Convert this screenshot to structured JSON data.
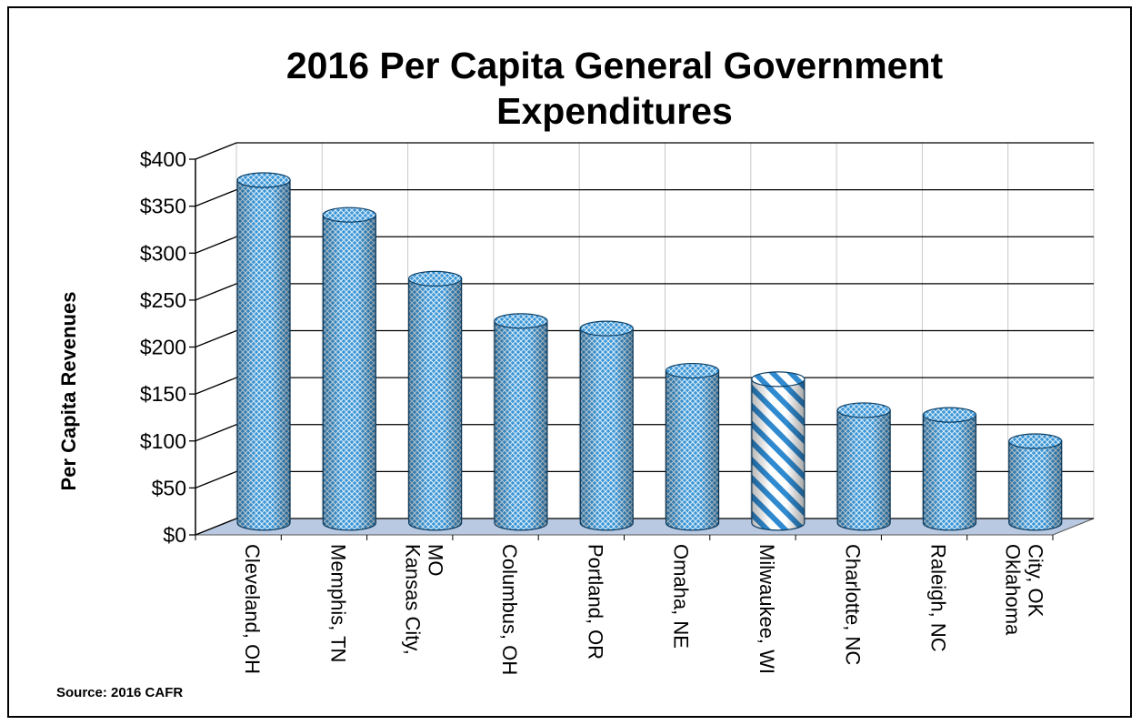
{
  "chart_data": {
    "type": "bar",
    "title": "2016 Per Capita General Government Expenditures",
    "title_lines": [
      "2016 Per Capita General Government",
      "Expenditures"
    ],
    "ylabel": "Per Capita Revenues",
    "xlabel": "",
    "ylim": [
      0,
      400
    ],
    "y_ticks": [
      "$0",
      "$50",
      "$100",
      "$150",
      "$200",
      "$250",
      "$300",
      "$350",
      "$400"
    ],
    "grid": true,
    "style": "3d-cylinder",
    "categories": [
      [
        "Cleveland, OH"
      ],
      [
        "Memphis, TN"
      ],
      [
        "Kansas City,",
        "MO"
      ],
      [
        "Columbus, OH"
      ],
      [
        "Portland, OR"
      ],
      [
        "Omaha, NE"
      ],
      [
        "Milwaukee, WI"
      ],
      [
        "Charlotte, NC"
      ],
      [
        "Raleigh, NC"
      ],
      [
        "Oklahoma",
        "City, OK"
      ]
    ],
    "values": [
      365,
      328,
      260,
      215,
      207,
      162,
      153,
      120,
      115,
      87
    ],
    "highlighted_category": "Milwaukee, WI",
    "colors": {
      "bar": "#4a9fd8",
      "bar_dark": "#1d6ea6",
      "highlight_stripe": "#2f8ad0",
      "floor": "#b9c9e2",
      "grid": "#000000"
    }
  },
  "source_note": "Source:  2016 CAFR"
}
